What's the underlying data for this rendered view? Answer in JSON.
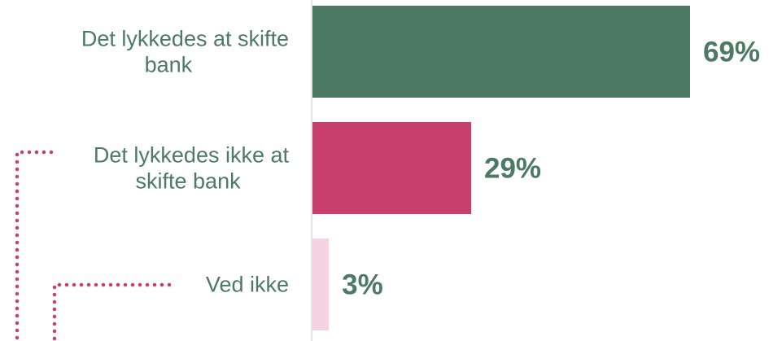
{
  "chart_data": {
    "type": "bar",
    "orientation": "horizontal",
    "categories": [
      [
        "Det lykkedes at skifte",
        "bank"
      ],
      [
        "Det lykkedes ikke at",
        "skifte bank"
      ],
      [
        "Ved ikke"
      ]
    ],
    "values": [
      69,
      29,
      3
    ],
    "value_labels": [
      "69%",
      "29%",
      "3%"
    ],
    "xlim": [
      0,
      72
    ],
    "grid": false,
    "legend": "none",
    "title": "",
    "xlabel": "",
    "ylabel": ""
  },
  "colors": {
    "bars": [
      "#4c7a64",
      "#c83e6c",
      "#f6d3e3"
    ],
    "category_text": "#4c7a64",
    "value_text": "#4c7a64",
    "connector": "#c83e6c",
    "axis": "#d9d9d9"
  }
}
